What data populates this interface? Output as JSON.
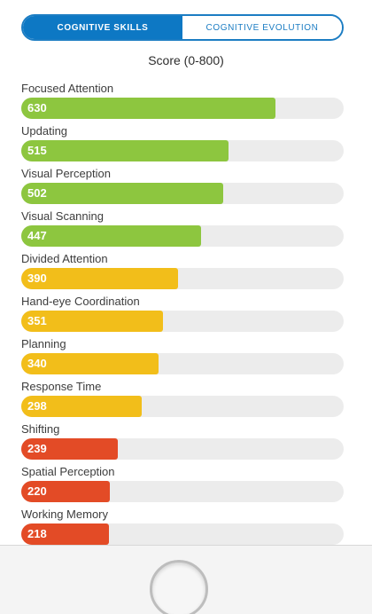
{
  "tabs": {
    "active_label": "COGNITIVE SKILLS",
    "inactive_label": "COGNITIVE EVOLUTION"
  },
  "score_title": "Score (0-800)",
  "score_max": 800,
  "colors": {
    "active_tab": "#0d78c4",
    "high": "#8dc63f",
    "medium": "#f2be1a",
    "low": "#e34b26",
    "track": "#ececec"
  },
  "skills": [
    {
      "label": "Focused Attention",
      "value": "630",
      "score": 630,
      "level": "green"
    },
    {
      "label": "Updating",
      "value": "515",
      "score": 515,
      "level": "green"
    },
    {
      "label": "Visual Perception",
      "value": "502",
      "score": 502,
      "level": "green"
    },
    {
      "label": "Visual Scanning",
      "value": "447",
      "score": 447,
      "level": "green"
    },
    {
      "label": "Divided Attention",
      "value": "390",
      "score": 390,
      "level": "yellow"
    },
    {
      "label": "Hand-eye Coordination",
      "value": "351",
      "score": 351,
      "level": "yellow"
    },
    {
      "label": "Planning",
      "value": "340",
      "score": 340,
      "level": "yellow"
    },
    {
      "label": "Response Time",
      "value": "298",
      "score": 298,
      "level": "yellow"
    },
    {
      "label": "Shifting",
      "value": "239",
      "score": 239,
      "level": "red"
    },
    {
      "label": "Spatial Perception",
      "value": "220",
      "score": 220,
      "level": "red"
    },
    {
      "label": "Working Memory",
      "value": "218",
      "score": 218,
      "level": "red"
    }
  ]
}
